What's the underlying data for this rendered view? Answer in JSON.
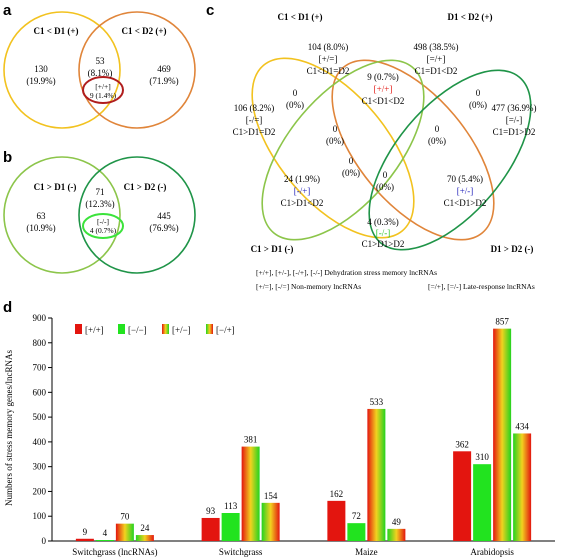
{
  "panels": {
    "a": "a",
    "b": "b",
    "c": "c",
    "d": "d"
  },
  "venn_a": {
    "left_set": "C1 < D1 (+)",
    "right_set": "C1 < D2 (+)",
    "left_only": [
      "130",
      "(19.9%)"
    ],
    "intersection": [
      "53",
      "(8.1%)"
    ],
    "subset": [
      "[+/+]",
      "9 (1.4%)"
    ],
    "right_only": [
      "469",
      "(71.9%)"
    ]
  },
  "venn_b": {
    "left_set": "C1 > D1 (-)",
    "right_set": "C1 > D2 (-)",
    "left_only": [
      "63",
      "(10.9%)"
    ],
    "intersection": [
      "71",
      "(12.3%)"
    ],
    "subset": [
      "[-/-]",
      "4 (0.7%)"
    ],
    "right_only": [
      "445",
      "(76.9%)"
    ]
  },
  "venn_c": {
    "sets": [
      "C1 < D1 (+)",
      "D1 < D2 (+)",
      "C1 > D1 (-)",
      "D1 > D2 (-)"
    ],
    "regions": {
      "r1": [
        "104 (8.0%)",
        "[+/=]",
        "C1<D1=D2"
      ],
      "r2": [
        "498 (38.5%)",
        "[=/+]",
        "C1=D1<D2"
      ],
      "r3": [
        "106 (8.2%)",
        "[-/=]",
        "C1>D1=D2"
      ],
      "r4": [
        "477 (36.9%)",
        "[=/-]",
        "C1=D1>D2"
      ],
      "r5": [
        "9 (0.7%)",
        "[+/+]",
        "C1<D1<D2"
      ],
      "r6": [
        "24 (1.9%)",
        "[-/+]",
        "C1>D1<D2"
      ],
      "r7": [
        "70 (5.4%)",
        "[+/-]",
        "C1<D1>D2"
      ],
      "r8": [
        "4 (0.3%)",
        "[-/-]",
        "C1>D1>D2"
      ],
      "z1": [
        "0",
        "(0%)"
      ],
      "z2": [
        "0",
        "(0%)"
      ],
      "z3": [
        "0",
        "(0%)"
      ],
      "z4": [
        "0",
        "(0%)"
      ],
      "z5": [
        "0",
        "(0%)"
      ],
      "z6": [
        "0",
        "(0%)"
      ]
    },
    "legend": [
      "[+/+], [+/-], [-/+], [-/-]  Dehydration stress memory lncRNAs",
      "[+/=], [-/=]  Non-memory lncRNAs",
      "[=/+], [=/-]  Late-response lncRNAs"
    ]
  },
  "colors": {
    "yellow": "#f2c21f",
    "orange": "#e0853a",
    "lightgreen": "#8cc54a",
    "darkgreen": "#1f9448",
    "red": "#e3150f",
    "green": "#22e31f",
    "blue": "#1a1ab8"
  },
  "chart_data": {
    "type": "bar",
    "ylabel": "Numbers of stress memory genes/lncRNAs",
    "ylim": [
      0,
      900
    ],
    "yticks": [
      0,
      100,
      200,
      300,
      400,
      500,
      600,
      700,
      800,
      900
    ],
    "categories": [
      "Switchgrass (lncRNAs)",
      "Switchgrass",
      "Maize",
      "Arabidopsis"
    ],
    "series": [
      {
        "name": "[+/+]",
        "values": [
          9,
          93,
          162,
          362
        ]
      },
      {
        "name": "[−/−]",
        "values": [
          4,
          113,
          72,
          310
        ]
      },
      {
        "name": "[+/−]",
        "values": [
          70,
          381,
          533,
          857
        ]
      },
      {
        "name": "[−/+]",
        "values": [
          24,
          154,
          49,
          434
        ]
      }
    ],
    "legend_position": "top-left"
  }
}
